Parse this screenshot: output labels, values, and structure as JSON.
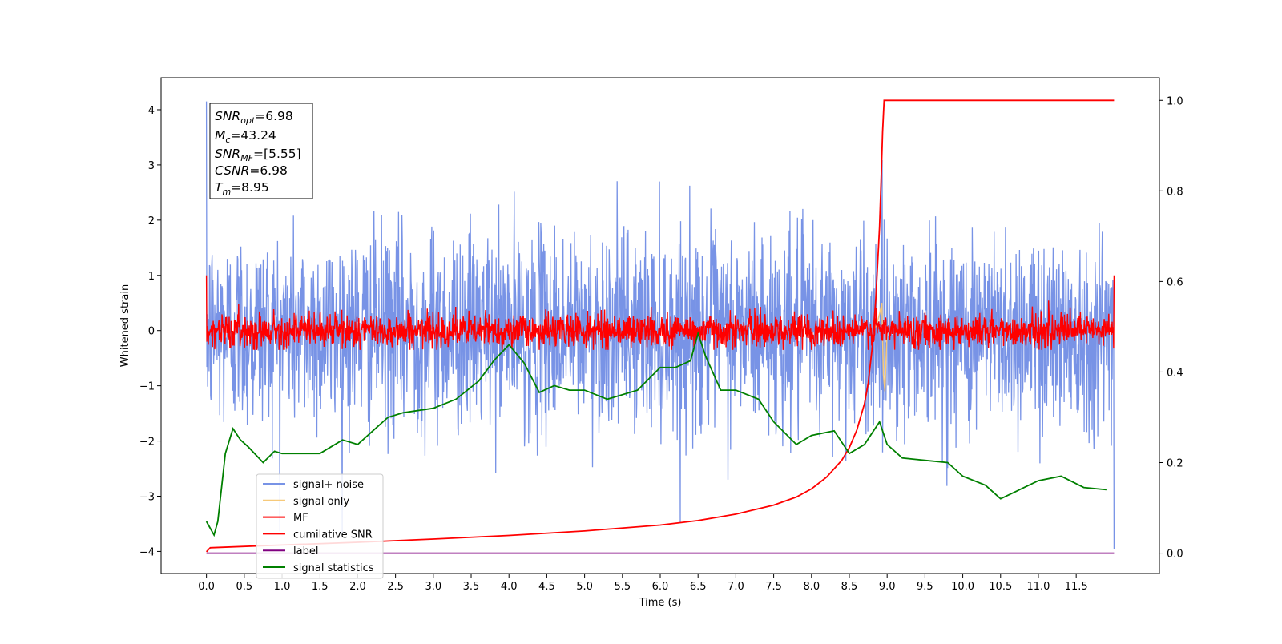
{
  "chart_data": {
    "type": "line",
    "title": "",
    "xlabel": "Time (s)",
    "ylabel": "Whitened strain",
    "xlim": [
      -0.6,
      12.6
    ],
    "ylim": [
      -4.4,
      4.58
    ],
    "ylim_right": [
      -0.045,
      1.05
    ],
    "x_ticks": [
      0.0,
      0.5,
      1.0,
      1.5,
      2.0,
      2.5,
      3.0,
      3.5,
      4.0,
      4.5,
      5.0,
      5.5,
      6.0,
      6.5,
      7.0,
      7.5,
      8.0,
      8.5,
      9.0,
      9.5,
      10.0,
      10.5,
      11.0,
      11.5
    ],
    "x_tick_labels": [
      "0.0",
      "0.5",
      "1.0",
      "1.5",
      "2.0",
      "2.5",
      "3.0",
      "3.5",
      "4.0",
      "4.5",
      "5.0",
      "5.5",
      "6.0",
      "6.5",
      "7.0",
      "7.5",
      "8.0",
      "8.5",
      "9.0",
      "9.5",
      "10.0",
      "10.5",
      "11.0",
      "11.5"
    ],
    "y_ticks_left": [
      4,
      3,
      2,
      1,
      0,
      -1,
      -2,
      -3,
      -4
    ],
    "y_tick_labels_left": [
      "4",
      "3",
      "2",
      "1",
      "0",
      "−1",
      "−2",
      "−3",
      "−4"
    ],
    "y_ticks_right": [
      1.0,
      0.8,
      0.6,
      0.4,
      0.2,
      0.0
    ],
    "y_tick_labels_right": [
      "1.0",
      "0.8",
      "0.6",
      "0.4",
      "0.2",
      "0.0"
    ],
    "grid": false,
    "legend_placement": "lower-left",
    "colors": {
      "signal_noise": "#7893e6",
      "signal_only": "#f6c97a",
      "mf": "#ff0000",
      "cumulative_snr": "#ff0000",
      "label": "#800080",
      "signal_statistics": "#008000"
    },
    "series": [
      {
        "name": "signal+ noise",
        "axis": "left",
        "description_values": {
          "x_range": [
            0.0,
            12.0
          ],
          "noise_std": 0.9,
          "max": 4.15,
          "min": -3.95
        }
      },
      {
        "name": "signal only",
        "axis": "left",
        "x": [
          8.82,
          8.86,
          8.9,
          8.93,
          8.95,
          8.97,
          9.0
        ],
        "y": [
          0.0,
          0.1,
          0.3,
          0.5,
          -0.8,
          -1.1,
          0.0
        ]
      },
      {
        "name": "MF",
        "axis": "left",
        "description_values": {
          "x_range": [
            0.0,
            12.0
          ],
          "baseline": 0.0,
          "spread": 0.15,
          "max": 1.0
        }
      },
      {
        "name": "cumilative SNR",
        "axis": "right",
        "x": [
          0.0,
          0.05,
          1.0,
          2.0,
          3.0,
          4.0,
          5.0,
          6.0,
          6.5,
          7.0,
          7.5,
          7.8,
          8.0,
          8.2,
          8.4,
          8.5,
          8.6,
          8.7,
          8.75,
          8.8,
          8.85,
          8.9,
          8.92,
          8.94,
          8.96,
          9.0,
          10.0,
          11.0,
          12.0
        ],
        "y": [
          0.003,
          0.012,
          0.018,
          0.024,
          0.031,
          0.039,
          0.049,
          0.062,
          0.072,
          0.086,
          0.106,
          0.124,
          0.142,
          0.168,
          0.205,
          0.233,
          0.272,
          0.33,
          0.376,
          0.45,
          0.56,
          0.72,
          0.82,
          0.93,
          1.0,
          1.0,
          1.0,
          1.0,
          1.0
        ]
      },
      {
        "name": "label",
        "axis": "right",
        "x": [
          0.0,
          12.0
        ],
        "y": [
          0.0,
          0.0
        ]
      },
      {
        "name": "signal statistics",
        "axis": "right",
        "x": [
          0.0,
          0.1,
          0.15,
          0.25,
          0.35,
          0.45,
          0.55,
          0.75,
          0.9,
          1.0,
          1.2,
          1.5,
          1.8,
          2.0,
          2.2,
          2.4,
          2.6,
          3.0,
          3.3,
          3.6,
          3.8,
          4.0,
          4.2,
          4.4,
          4.6,
          4.8,
          5.0,
          5.3,
          5.7,
          6.0,
          6.2,
          6.4,
          6.5,
          6.6,
          6.8,
          7.0,
          7.3,
          7.5,
          7.8,
          8.0,
          8.3,
          8.5,
          8.7,
          8.9,
          9.0,
          9.2,
          9.5,
          9.8,
          10.0,
          10.3,
          10.5,
          11.0,
          11.3,
          11.6,
          11.9
        ],
        "y": [
          0.07,
          0.04,
          0.07,
          0.22,
          0.275,
          0.25,
          0.235,
          0.2,
          0.225,
          0.22,
          0.22,
          0.22,
          0.25,
          0.24,
          0.27,
          0.3,
          0.31,
          0.32,
          0.34,
          0.38,
          0.425,
          0.46,
          0.42,
          0.355,
          0.37,
          0.36,
          0.36,
          0.34,
          0.36,
          0.41,
          0.41,
          0.425,
          0.485,
          0.435,
          0.36,
          0.36,
          0.34,
          0.29,
          0.24,
          0.26,
          0.27,
          0.22,
          0.24,
          0.29,
          0.24,
          0.21,
          0.205,
          0.2,
          0.17,
          0.15,
          0.12,
          0.16,
          0.17,
          0.145,
          0.14
        ]
      }
    ],
    "legend": [
      "signal+ noise",
      "signal only",
      "MF",
      "cumilative SNR",
      "label",
      "signal statistics"
    ],
    "annotations": {
      "snr_opt": {
        "main": "SNR",
        "sub": "opt",
        "value": "=6.98"
      },
      "mc": {
        "main": "M",
        "sub": "c",
        "value": "=43.24"
      },
      "snr_mf": {
        "main": "SNR",
        "sub": "MF",
        "value": "=[5.55]"
      },
      "csnr": {
        "main": "CSNR",
        "sub": "",
        "value": "=6.98"
      },
      "tm": {
        "main": "T",
        "sub": "m",
        "value": "=8.95"
      }
    }
  }
}
